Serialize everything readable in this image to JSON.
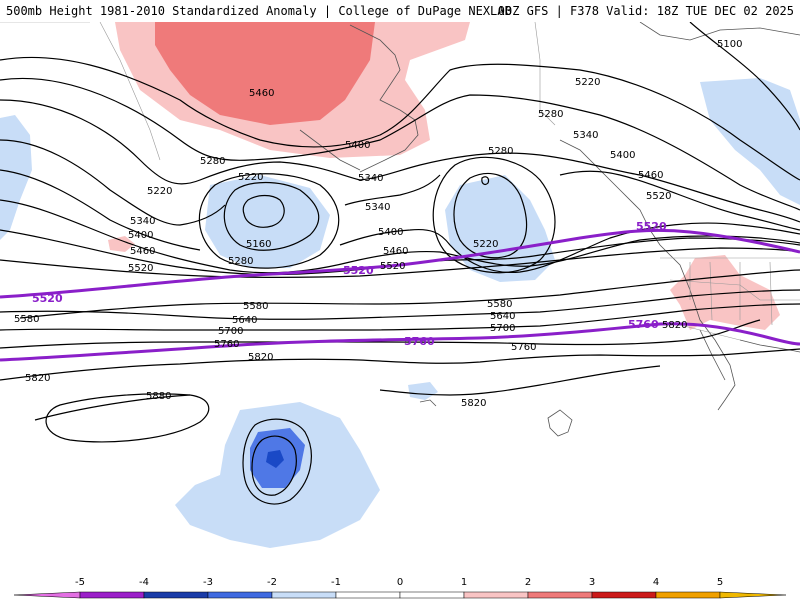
{
  "header": {
    "title_left": "500mb Height 1981-2010 Standardized Anomaly | College of DuPage NEXLAB",
    "title_right": "00Z GFS | F378 Valid: 18Z TUE DEC 02 2025"
  },
  "map": {
    "contour_labels": {
      "c5100": "5100",
      "c5160": "5160",
      "c5220a": "5220",
      "c5220b": "5220",
      "c5220c": "5220",
      "c5220d": "5220",
      "c5280a": "5280",
      "c5280b": "5280",
      "c5280c": "5280",
      "c5280d": "5280",
      "c5340a": "5340",
      "c5340b": "5340",
      "c5340c": "5340",
      "c5340d": "5340",
      "c5400a": "5400",
      "c5400b": "5400",
      "c5400c": "5400",
      "c5400d": "5400",
      "c5460a": "5460",
      "c5460b": "5460",
      "c5460c": "5460",
      "c5460d": "5460",
      "c5520a": "5520",
      "c5520b": "5520",
      "c5520c": "5520",
      "c5580a": "5580",
      "c5580b": "5580",
      "c5580c": "5580",
      "c5640a": "5640",
      "c5640b": "5640",
      "c5700a": "5700",
      "c5700b": "5700",
      "c5760a": "5760",
      "c5760b": "5760",
      "c5820a": "5820",
      "c5820b": "5820",
      "c5820c": "5820",
      "c5820d": "5820",
      "c5880": "5880"
    },
    "purple_labels": {
      "p5520a": "5520",
      "p5520b": "5520",
      "p5520c": "5520",
      "p5760a": "5760",
      "p5760b": "5760"
    },
    "colors": {
      "purple": "#8a1fc9",
      "pos1": "#f9c4c4",
      "pos2": "#ef7a7a",
      "neg1": "#c8ddf7",
      "neg2": "#4f78e6",
      "neg3": "#1a49c6"
    }
  },
  "colorbar": {
    "labels": [
      "-5",
      "-4",
      "-3",
      "-2",
      "-1",
      "0",
      "1",
      "2",
      "3",
      "4",
      "5"
    ],
    "colors": [
      "#9b1fc9",
      "#1a3ca8",
      "#3f6ae0",
      "#c8ddf7",
      "#ffffff",
      "#ffffff",
      "#f9c4c4",
      "#ef7a7a",
      "#cc1a1a",
      "#f0a000"
    ]
  }
}
